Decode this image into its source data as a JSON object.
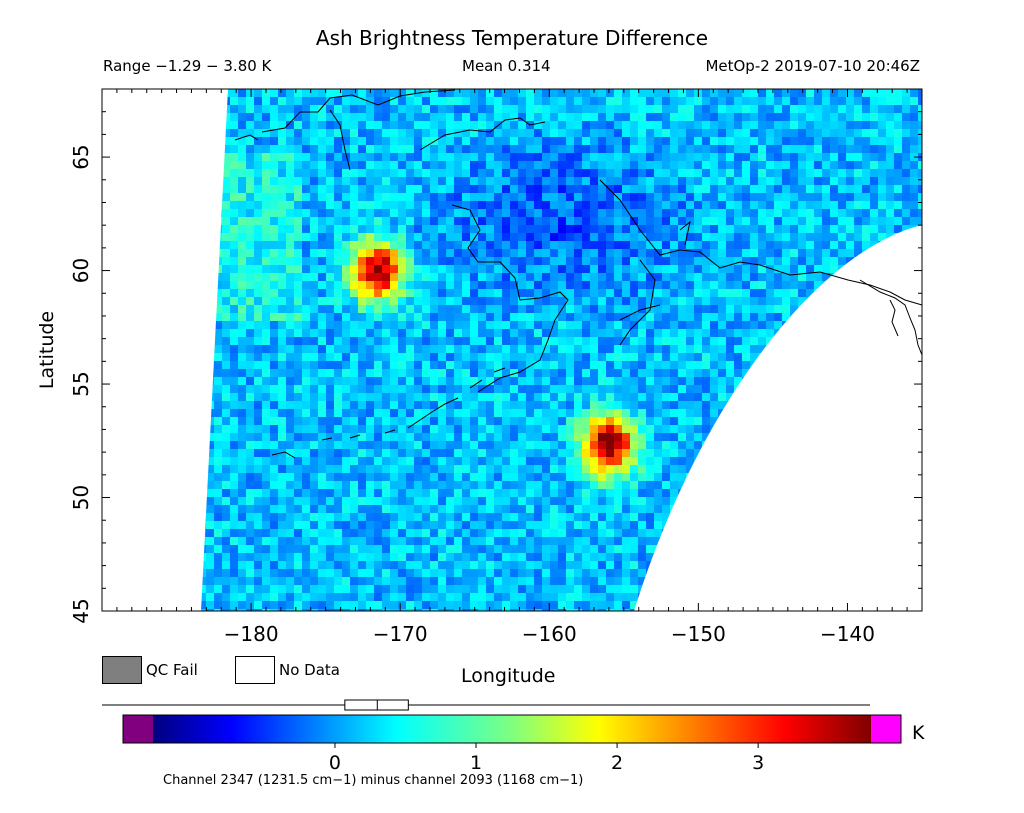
{
  "header": {
    "title": "Ash Brightness Temperature Difference",
    "range": "Range −1.29 − 3.80 K",
    "mean": "Mean 0.314",
    "satellite_time": "MetOp-2 2019-07-10 20:46Z"
  },
  "map": {
    "xlabel": "Longitude",
    "ylabel": "Latitude",
    "x_range": [
      -190,
      -135
    ],
    "y_range": [
      45,
      68
    ],
    "x_ticks": [
      -180,
      -170,
      -160,
      -150,
      -140
    ],
    "x_tick_labels": [
      "−180",
      "−170",
      "−160",
      "−150",
      "−140"
    ],
    "y_ticks": [
      45,
      50,
      55,
      60,
      65
    ],
    "y_tick_labels": [
      "45",
      "50",
      "55",
      "60",
      "65"
    ],
    "ash_plumes": [
      {
        "lon": -171.5,
        "lat": 60.0,
        "peak": 3.4
      },
      {
        "lon": -156.0,
        "lat": 52.3,
        "peak": 3.6
      }
    ],
    "background_value": 0.3
  },
  "legend": {
    "qc_fail_label": "QC Fail",
    "no_data_label": "No Data",
    "qc_color": "#7f7f7f",
    "no_data_color": "#ffffff"
  },
  "colorbar": {
    "min": -1.29,
    "max": 3.8,
    "ticks": [
      "0",
      "1",
      "2",
      "3"
    ],
    "tick_values": [
      0,
      1,
      2,
      3
    ],
    "unit": "K",
    "under_color": "#800080",
    "over_color": "#ff00ff",
    "box_range": [
      0.07,
      0.52
    ],
    "box_median": 0.3
  },
  "footnote": "Channel 2347 (1231.5 cm−1) minus channel 2093 (1168 cm−1)"
}
